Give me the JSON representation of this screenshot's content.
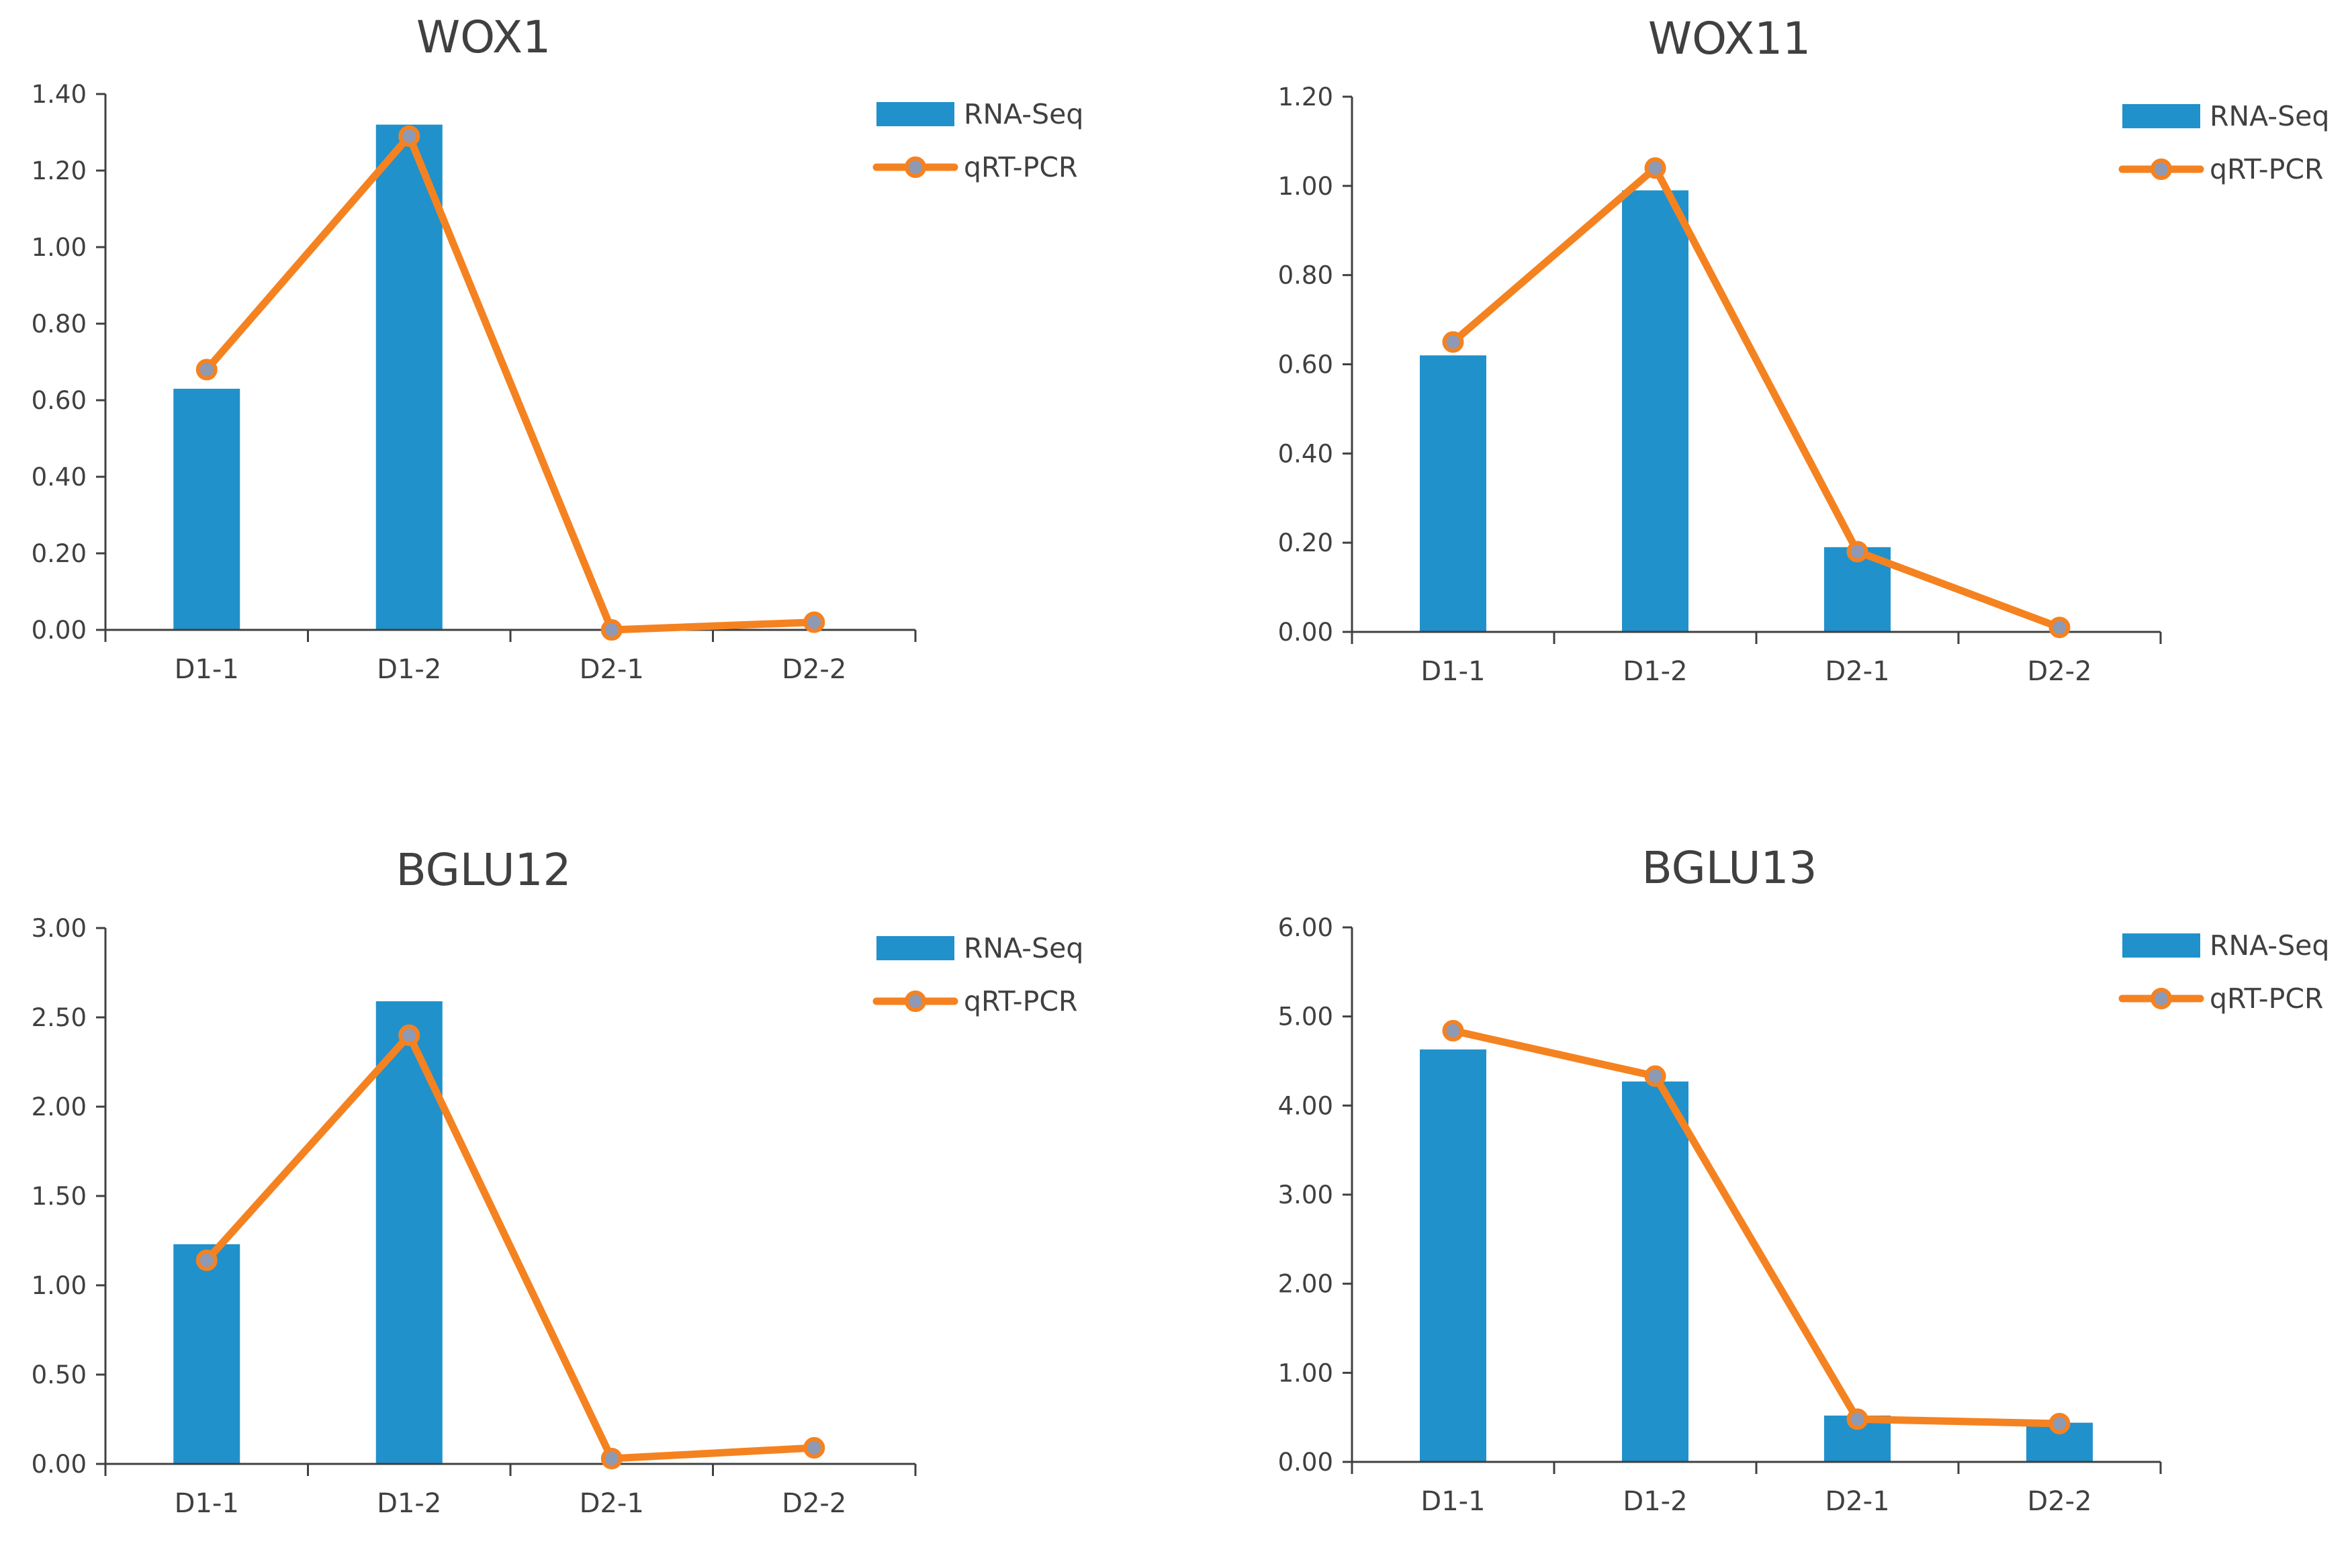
{
  "colors": {
    "rna_seq": "#2091cb",
    "qrt_pcr": "#f58220",
    "marker": "#8e99b4",
    "axis": "#404040"
  },
  "chart_data": [
    {
      "type": "bar",
      "title": "WOX1",
      "categories": [
        "D1-1",
        "D1-2",
        "D2-1",
        "D2-2"
      ],
      "ylim": [
        0,
        1.4
      ],
      "yticks": [
        "0.00",
        "0.20",
        "0.40",
        "0.60",
        "0.80",
        "1.00",
        "1.20",
        "1.40"
      ],
      "series": [
        {
          "name": "RNA-Seq",
          "kind": "bar",
          "values": [
            0.63,
            1.32,
            0.0,
            0.0
          ]
        },
        {
          "name": "qRT-PCR",
          "kind": "line",
          "values": [
            0.68,
            1.29,
            0.0,
            0.02
          ]
        }
      ],
      "legend": "top-right"
    },
    {
      "type": "bar",
      "title": "WOX11",
      "categories": [
        "D1-1",
        "D1-2",
        "D2-1",
        "D2-2"
      ],
      "ylim": [
        0,
        1.2
      ],
      "yticks": [
        "0.00",
        "0.20",
        "0.40",
        "0.60",
        "0.80",
        "1.00",
        "1.20"
      ],
      "series": [
        {
          "name": "RNA-Seq",
          "kind": "bar",
          "values": [
            0.62,
            0.99,
            0.19,
            0.0
          ]
        },
        {
          "name": "qRT-PCR",
          "kind": "line",
          "values": [
            0.65,
            1.04,
            0.18,
            0.01
          ]
        }
      ],
      "legend": "top-right"
    },
    {
      "type": "bar",
      "title": "BGLU12",
      "categories": [
        "D1-1",
        "D1-2",
        "D2-1",
        "D2-2"
      ],
      "ylim": [
        0,
        3.0
      ],
      "yticks": [
        "0.00",
        "0.50",
        "1.00",
        "1.50",
        "2.00",
        "2.50",
        "3.00"
      ],
      "series": [
        {
          "name": "RNA-Seq",
          "kind": "bar",
          "values": [
            1.23,
            2.59,
            0.0,
            0.0
          ]
        },
        {
          "name": "qRT-PCR",
          "kind": "line",
          "values": [
            1.14,
            2.4,
            0.03,
            0.09
          ]
        }
      ],
      "legend": "top-right"
    },
    {
      "type": "bar",
      "title": "BGLU13",
      "categories": [
        "D1-1",
        "D1-2",
        "D2-1",
        "D2-2"
      ],
      "ylim": [
        0,
        6.0
      ],
      "yticks": [
        "0.00",
        "1.00",
        "2.00",
        "3.00",
        "4.00",
        "5.00",
        "6.00"
      ],
      "series": [
        {
          "name": "RNA-Seq",
          "kind": "bar",
          "values": [
            4.63,
            4.27,
            0.52,
            0.44
          ]
        },
        {
          "name": "qRT-PCR",
          "kind": "line",
          "values": [
            4.84,
            4.33,
            0.48,
            0.43
          ]
        }
      ],
      "legend": "top-right"
    }
  ]
}
